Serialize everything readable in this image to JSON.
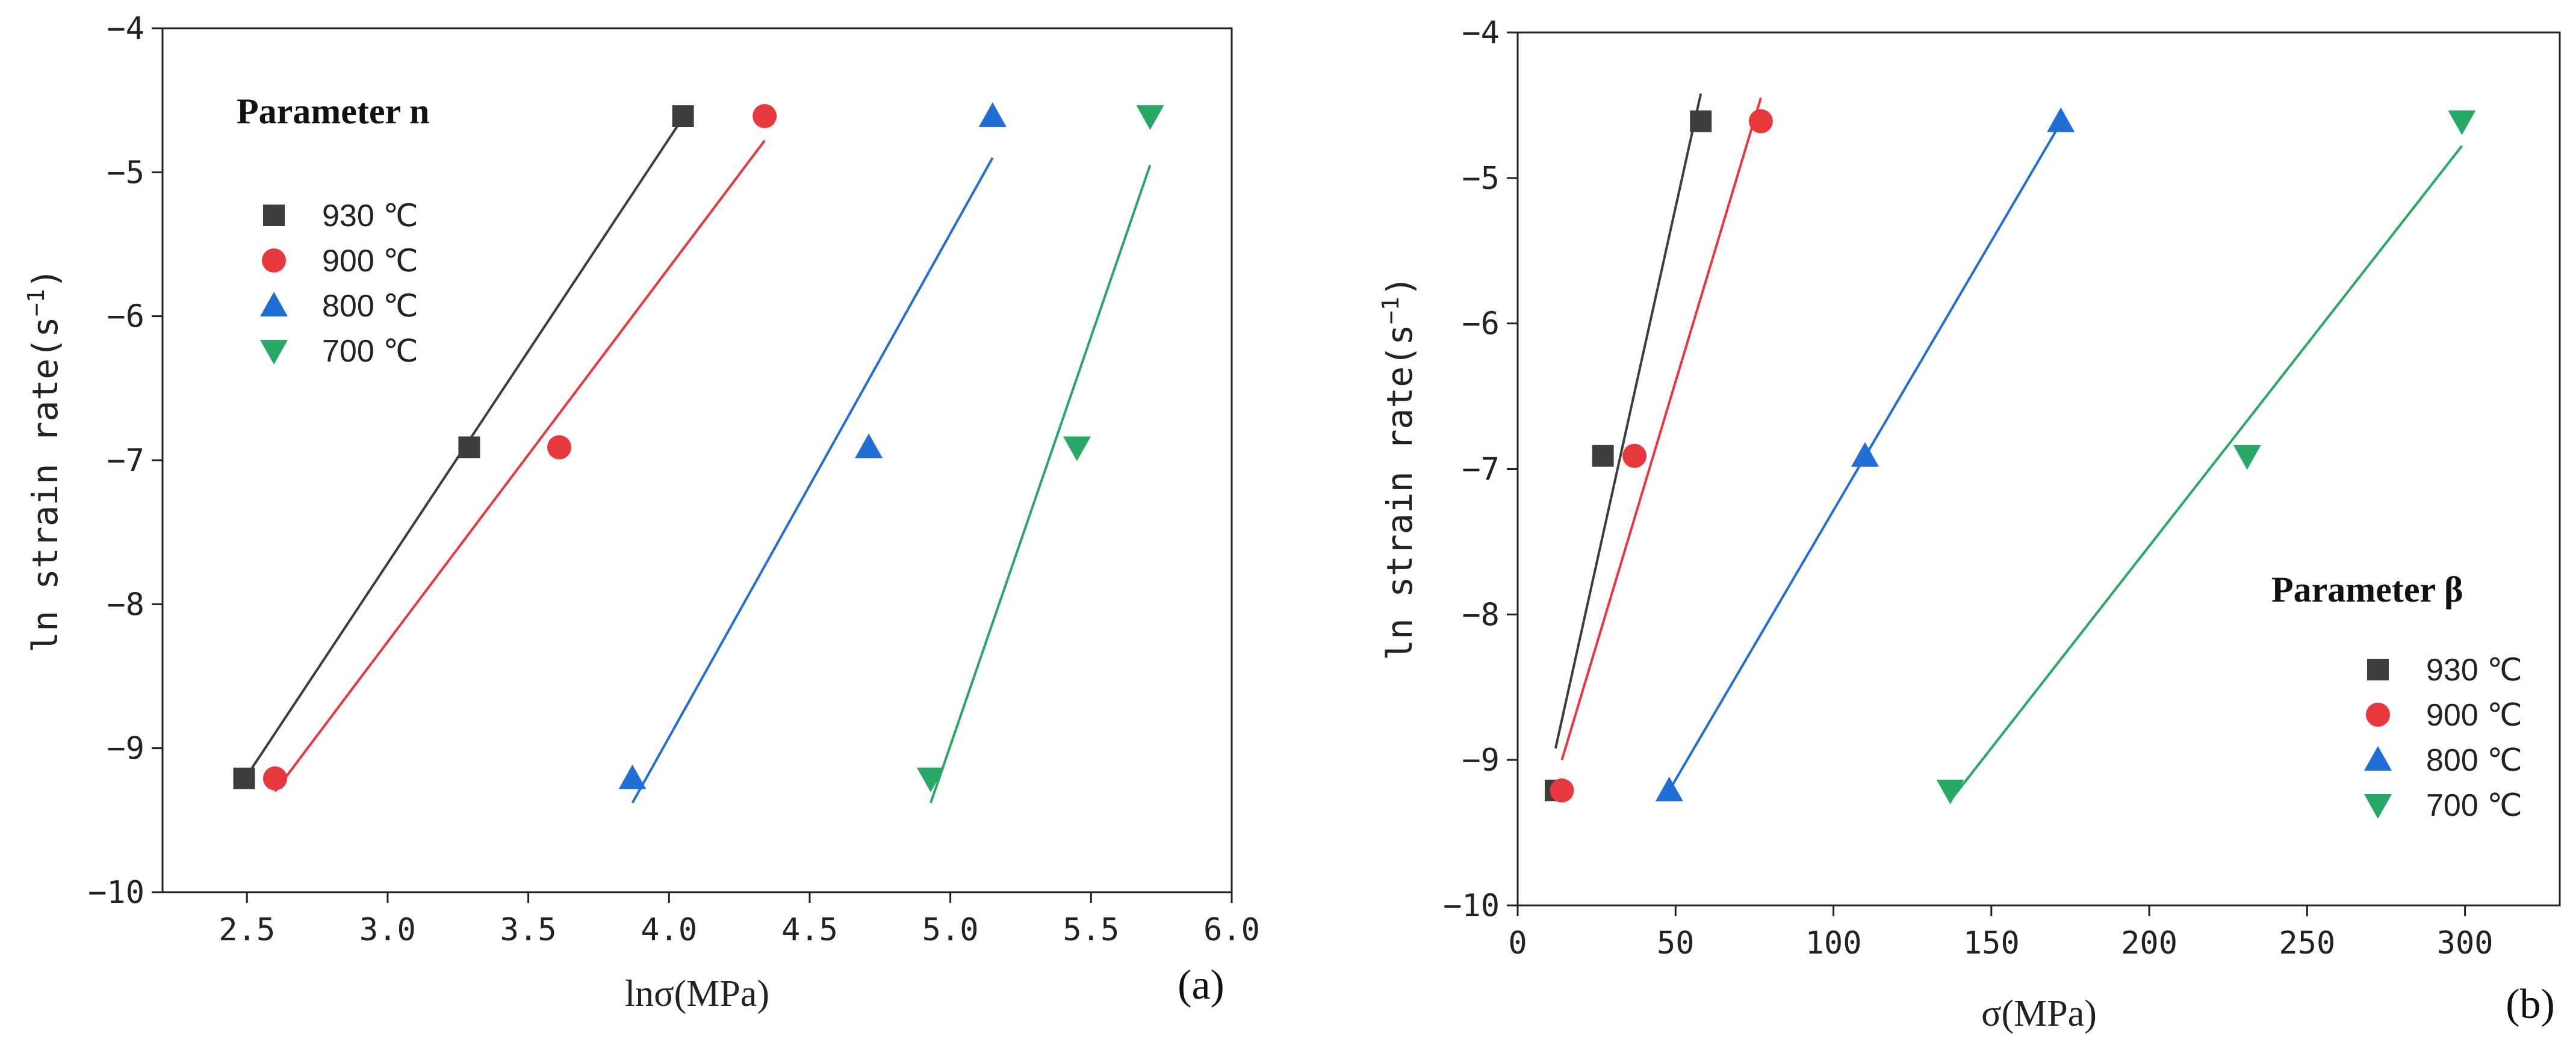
{
  "chart_data": [
    {
      "type": "scatter",
      "panel_label": "(a)",
      "legend_title": "Parameter n",
      "xlabel": "lnσ(MPa)",
      "ylabel": "ln strain rate(s",
      "ylabel_exponent": "−1",
      "ylabel_close": ")",
      "xlim": [
        2.2,
        6.0
      ],
      "ylim": [
        -10,
        -4
      ],
      "xticks": [
        2.5,
        3.0,
        3.5,
        4.0,
        4.5,
        5.0,
        5.5,
        6.0
      ],
      "xtick_labels": [
        "2.5",
        "3.0",
        "3.5",
        "4.0",
        "4.5",
        "5.0",
        "5.5",
        "6.0"
      ],
      "yticks": [
        -10,
        -9,
        -8,
        -7,
        -6,
        -5,
        -4
      ],
      "ytick_labels": [
        "−10",
        "−9",
        "−8",
        "−7",
        "−6",
        "−5",
        "−4"
      ],
      "legend_position": "upper-left",
      "series": [
        {
          "name": "930 ℃",
          "color": "#3d3d3d",
          "marker": "square",
          "x": [
            2.49,
            3.29,
            4.05
          ],
          "y": [
            -9.21,
            -6.91,
            -4.61
          ],
          "fit": [
            [
              2.49,
              -9.22
            ],
            [
              4.05,
              -4.62
            ]
          ]
        },
        {
          "name": "900 ℃",
          "color": "#e8383d",
          "marker": "circle",
          "x": [
            2.6,
            3.61,
            4.34
          ],
          "y": [
            -9.21,
            -6.91,
            -4.61
          ],
          "fit": [
            [
              2.6,
              -9.3
            ],
            [
              4.34,
              -4.78
            ]
          ]
        },
        {
          "name": "800 ℃",
          "color": "#1f6fd6",
          "marker": "triangle-up",
          "x": [
            3.87,
            4.71,
            5.15
          ],
          "y": [
            -9.21,
            -6.91,
            -4.61
          ],
          "fit": [
            [
              3.87,
              -9.38
            ],
            [
              5.15,
              -4.9
            ]
          ]
        },
        {
          "name": "700 ℃",
          "color": "#27a865",
          "marker": "triangle-down",
          "x": [
            4.93,
            5.45,
            5.71
          ],
          "y": [
            -9.21,
            -6.91,
            -4.61
          ],
          "fit": [
            [
              4.93,
              -9.38
            ],
            [
              5.71,
              -4.95
            ]
          ]
        }
      ]
    },
    {
      "type": "scatter",
      "panel_label": "(b)",
      "legend_title": "Parameter β",
      "xlabel": "σ(MPa)",
      "ylabel": "ln strain rate(s",
      "ylabel_exponent": "−1",
      "ylabel_close": ")",
      "xlim": [
        0,
        330
      ],
      "ylim": [
        -10,
        -4
      ],
      "xticks": [
        0,
        50,
        100,
        150,
        200,
        250,
        300
      ],
      "xtick_labels": [
        "0",
        "50",
        "100",
        "150",
        "200",
        "250",
        "300"
      ],
      "yticks": [
        -10,
        -9,
        -8,
        -7,
        -6,
        -5,
        -4
      ],
      "ytick_labels": [
        "−10",
        "−9",
        "−8",
        "−7",
        "−6",
        "−5",
        "−4"
      ],
      "legend_position": "lower-right",
      "series": [
        {
          "name": "930 ℃",
          "color": "#3d3d3d",
          "marker": "square",
          "x": [
            12,
            27,
            58
          ],
          "y": [
            -9.21,
            -6.91,
            -4.61
          ],
          "fit": [
            [
              12,
              -8.92
            ],
            [
              58,
              -4.42
            ]
          ]
        },
        {
          "name": "900 ℃",
          "color": "#e8383d",
          "marker": "circle",
          "x": [
            14,
            37,
            77
          ],
          "y": [
            -9.21,
            -6.91,
            -4.61
          ],
          "fit": [
            [
              14,
              -9.0
            ],
            [
              77,
              -4.45
            ]
          ]
        },
        {
          "name": "800 ℃",
          "color": "#1f6fd6",
          "marker": "triangle-up",
          "x": [
            48,
            110,
            172
          ],
          "y": [
            -9.21,
            -6.91,
            -4.61
          ],
          "fit": [
            [
              48,
              -9.21
            ],
            [
              172,
              -4.62
            ]
          ]
        },
        {
          "name": "700 ℃",
          "color": "#27a865",
          "marker": "triangle-down",
          "x": [
            137,
            231,
            299
          ],
          "y": [
            -9.21,
            -6.91,
            -4.61
          ],
          "fit": [
            [
              137,
              -9.28
            ],
            [
              299,
              -4.78
            ]
          ]
        }
      ]
    }
  ]
}
